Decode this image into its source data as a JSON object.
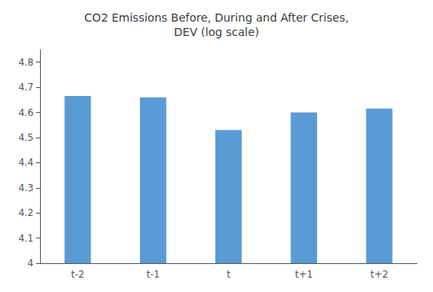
{
  "chart_data": {
    "type": "bar",
    "title": "CO2 Emissions Before, During and After Crises,\nDEV (log scale)",
    "categories": [
      "t-2",
      "t-1",
      "t",
      "t+1",
      "t+2"
    ],
    "values": [
      4.665,
      4.66,
      4.53,
      4.6,
      4.615
    ],
    "color": "#5B9BD5",
    "ylim": [
      4.0,
      4.85
    ],
    "yticks": [
      4.0,
      4.1,
      4.2,
      4.3,
      4.4,
      4.5,
      4.6,
      4.7,
      4.8
    ],
    "grid": false
  }
}
